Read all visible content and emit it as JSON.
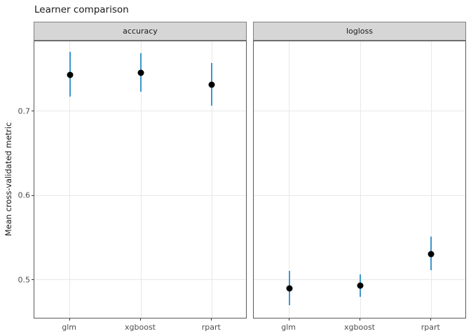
{
  "title": "Learner comparison",
  "colors": {
    "errorbar": "#3E97CB",
    "point": "#000000",
    "strip_fill": "#D6D6D6",
    "strip_border": "#7F7F7F",
    "panel_border": "#595959",
    "gridline": "#E8E8E8",
    "axis_text": "#4D4D4D",
    "tick": "#333333",
    "title_text": "#1A1A1A"
  },
  "chart_data": {
    "type": "scatter",
    "title": "Learner comparison",
    "xlabel": "",
    "ylabel": "Mean cross-validated metric",
    "categories": [
      "glm",
      "xgboost",
      "rpart"
    ],
    "yticks": [
      0.7,
      0.6,
      0.5
    ],
    "ylim": [
      0.4535,
      0.7835
    ],
    "grid": "major",
    "legend": "none",
    "facets": [
      {
        "label": "accuracy",
        "series": [
          {
            "x": "glm",
            "mean": 0.744,
            "lower": 0.718,
            "upper": 0.771
          },
          {
            "x": "xgboost",
            "mean": 0.746,
            "lower": 0.724,
            "upper": 0.769
          },
          {
            "x": "rpart",
            "mean": 0.732,
            "lower": 0.707,
            "upper": 0.758
          }
        ]
      },
      {
        "label": "logloss",
        "series": [
          {
            "x": "glm",
            "mean": 0.49,
            "lower": 0.47,
            "upper": 0.511
          },
          {
            "x": "xgboost",
            "mean": 0.493,
            "lower": 0.48,
            "upper": 0.507
          },
          {
            "x": "rpart",
            "mean": 0.531,
            "lower": 0.512,
            "upper": 0.552
          }
        ]
      }
    ]
  }
}
